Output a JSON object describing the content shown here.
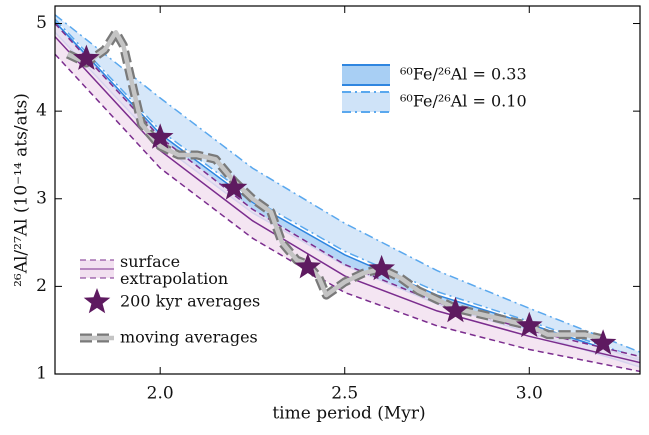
{
  "chart_data": {
    "type": "line",
    "xlabel": "time period (Myr)",
    "ylabel": "²⁶Al/²⁷Al  (10⁻¹⁴ ats/ats)",
    "xlim": [
      1.715,
      3.3
    ],
    "ylim": [
      1,
      5.2
    ],
    "xticks": [
      {
        "value": 2,
        "label": "2.0"
      },
      {
        "value": 2.5,
        "label": "2.5"
      },
      {
        "value": 3,
        "label": "3.0"
      }
    ],
    "yticks": [
      1,
      2,
      3,
      4,
      5
    ],
    "series": [
      {
        "name": "⁶⁰Fe/²⁶Al = 0.10",
        "kind": "band",
        "style": "dashdot",
        "color": "#5aa8ee",
        "fill": "#cfe3f8",
        "x": [
          1.715,
          2.0,
          2.25,
          2.5,
          2.75,
          3.0,
          3.3
        ],
        "lower": [
          5.05,
          3.78,
          3.0,
          2.4,
          1.94,
          1.6,
          1.18
        ],
        "upper": [
          5.1,
          4.15,
          3.35,
          2.72,
          2.18,
          1.75,
          1.25
        ]
      },
      {
        "name": "⁶⁰Fe/²⁶Al = 0.33",
        "kind": "band",
        "style": "solid",
        "color": "#2f86e0",
        "fill": "#a8cff4",
        "x": [
          1.715,
          2.0,
          2.25,
          2.5,
          2.75,
          3.0,
          3.3
        ],
        "lower": [
          4.9,
          3.62,
          2.84,
          2.24,
          1.8,
          1.47,
          1.08
        ],
        "upper": [
          5.02,
          3.74,
          2.96,
          2.36,
          1.9,
          1.57,
          1.16
        ]
      },
      {
        "name": "surface extrapolation",
        "kind": "band",
        "style": "dashed",
        "color": "#7b2d8e",
        "fill": "#f2e0f0",
        "x": [
          1.715,
          2.0,
          2.25,
          2.5,
          2.75,
          3.0,
          3.3
        ],
        "lower": [
          4.65,
          3.35,
          2.55,
          1.93,
          1.55,
          1.28,
          1.03
        ],
        "values": [
          4.85,
          3.55,
          2.75,
          2.12,
          1.72,
          1.43,
          1.13
        ],
        "upper": [
          5.0,
          3.7,
          2.88,
          2.25,
          1.82,
          1.5,
          1.2
        ]
      },
      {
        "name": "moving averages",
        "kind": "line",
        "color": "#8a8a8a",
        "x": [
          1.75,
          1.8,
          1.85,
          1.88,
          1.9,
          1.93,
          1.95,
          2.0,
          2.05,
          2.1,
          2.15,
          2.2,
          2.25,
          2.3,
          2.33,
          2.37,
          2.4,
          2.43,
          2.45,
          2.5,
          2.55,
          2.6,
          2.65,
          2.7,
          2.75,
          2.8,
          2.85,
          2.9,
          2.95,
          3.0,
          3.05,
          3.1,
          3.15,
          3.2
        ],
        "values": [
          4.65,
          4.55,
          4.7,
          4.9,
          4.75,
          4.2,
          3.85,
          3.6,
          3.5,
          3.5,
          3.45,
          3.2,
          3.0,
          2.85,
          2.5,
          2.3,
          2.25,
          2.1,
          1.9,
          2.05,
          2.15,
          2.2,
          2.1,
          1.95,
          1.85,
          1.75,
          1.7,
          1.65,
          1.6,
          1.55,
          1.45,
          1.45,
          1.45,
          1.4
        ]
      },
      {
        "name": "200 kyr averages",
        "kind": "star",
        "color": "#5e1a60",
        "x": [
          1.8,
          2.0,
          2.2,
          2.4,
          2.6,
          2.8,
          3.0,
          3.2
        ],
        "values": [
          4.6,
          3.7,
          3.12,
          2.22,
          2.2,
          1.72,
          1.55,
          1.35
        ]
      }
    ]
  }
}
